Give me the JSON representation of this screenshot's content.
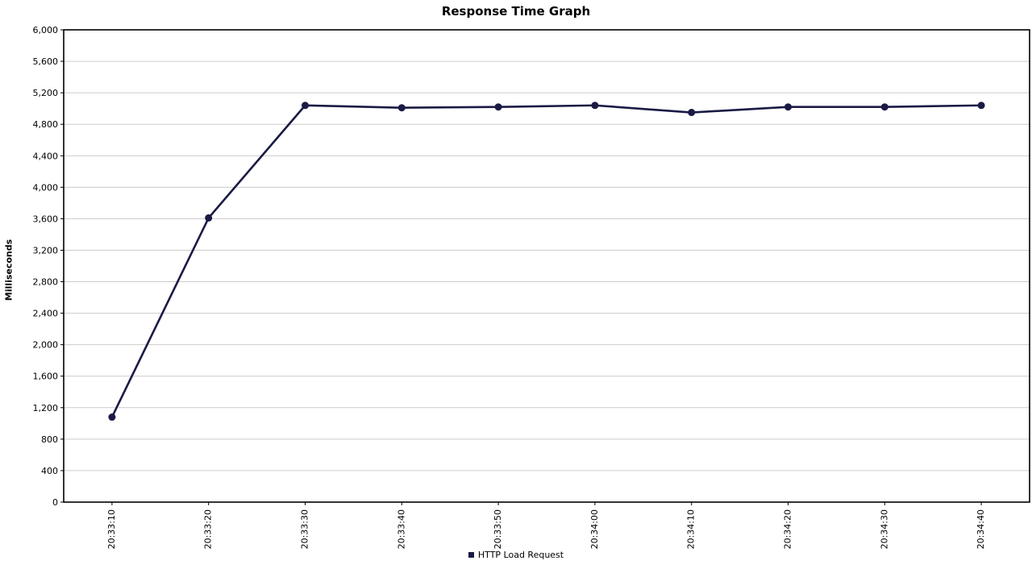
{
  "chart_data": {
    "type": "line",
    "title": "Response Time Graph",
    "ylabel": "Milliseconds",
    "xlabel": "",
    "categories": [
      "20:33:10",
      "20:33:20",
      "20:33:30",
      "20:33:40",
      "20:33:50",
      "20:34:00",
      "20:34:10",
      "20:34:20",
      "20:34:30",
      "20:34:40"
    ],
    "series": [
      {
        "name": "HTTP Load Request",
        "color": "#1a1a45",
        "values": [
          1080,
          3610,
          5040,
          5010,
          5020,
          5040,
          4950,
          5020,
          5020,
          5040
        ]
      }
    ],
    "ylim": [
      0,
      6000
    ],
    "ytick_step": 400,
    "ytick_labels": [
      "0",
      "400",
      "800",
      "1,200",
      "1,600",
      "2,000",
      "2,400",
      "2,800",
      "3,200",
      "3,600",
      "4,000",
      "4,400",
      "4,800",
      "5,200",
      "5,600",
      "6,000"
    ],
    "grid": true,
    "gridline_color": "#cccccc",
    "axis_color": "#000000",
    "background_color": "#ffffff",
    "legend_position": "bottom",
    "x_labels_rotated": true
  }
}
